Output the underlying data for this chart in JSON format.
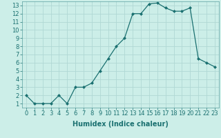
{
  "x": [
    0,
    1,
    2,
    3,
    4,
    5,
    6,
    7,
    8,
    9,
    10,
    11,
    12,
    13,
    14,
    15,
    16,
    17,
    18,
    19,
    20,
    21,
    22,
    23
  ],
  "y": [
    2,
    1,
    1,
    1,
    2,
    1,
    3,
    3,
    3.5,
    5,
    6.5,
    8,
    9,
    12,
    12,
    13.2,
    13.3,
    12.7,
    12.3,
    12.3,
    12.7,
    6.5,
    6,
    5.5
  ],
  "line_color": "#1a7070",
  "marker_color": "#1a7070",
  "bg_color": "#cceee8",
  "grid_color": "#b0d8d4",
  "xlabel": "Humidex (Indice chaleur)",
  "xlim": [
    -0.5,
    23.5
  ],
  "ylim": [
    0.5,
    13.5
  ],
  "xticks": [
    0,
    1,
    2,
    3,
    4,
    5,
    6,
    7,
    8,
    9,
    10,
    11,
    12,
    13,
    14,
    15,
    16,
    17,
    18,
    19,
    20,
    21,
    22,
    23
  ],
  "yticks": [
    1,
    2,
    3,
    4,
    5,
    6,
    7,
    8,
    9,
    10,
    11,
    12,
    13
  ],
  "xlabel_fontsize": 7,
  "tick_fontsize": 6
}
